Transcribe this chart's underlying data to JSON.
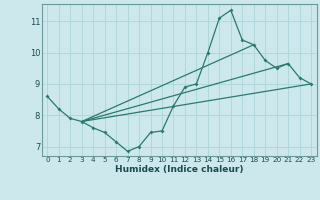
{
  "title": "",
  "xlabel": "Humidex (Indice chaleur)",
  "ylabel": "",
  "bg_color": "#cce8ec",
  "line_color": "#2a7a6e",
  "grid_color": "#b0d8dc",
  "xlim": [
    -0.5,
    23.5
  ],
  "ylim": [
    6.7,
    11.55
  ],
  "xticks": [
    0,
    1,
    2,
    3,
    4,
    5,
    6,
    7,
    8,
    9,
    10,
    11,
    12,
    13,
    14,
    15,
    16,
    17,
    18,
    19,
    20,
    21,
    22,
    23
  ],
  "yticks": [
    7,
    8,
    9,
    10,
    11
  ],
  "lines": [
    {
      "x": [
        0,
        1,
        2,
        3,
        4,
        5,
        6,
        7,
        8,
        9,
        10,
        11,
        12,
        13,
        14,
        15,
        16,
        17,
        18,
        19,
        20,
        21,
        22,
        23
      ],
      "y": [
        8.6,
        8.2,
        7.9,
        7.8,
        7.6,
        7.45,
        7.15,
        6.85,
        7.0,
        7.45,
        7.5,
        8.3,
        8.9,
        9.0,
        10.0,
        11.1,
        11.35,
        10.4,
        10.25,
        9.75,
        9.5,
        9.65,
        9.2,
        9.0
      ]
    },
    {
      "x": [
        3,
        23
      ],
      "y": [
        7.8,
        9.0
      ]
    },
    {
      "x": [
        3,
        21
      ],
      "y": [
        7.8,
        9.65
      ]
    },
    {
      "x": [
        3,
        18
      ],
      "y": [
        7.8,
        10.25
      ]
    }
  ]
}
